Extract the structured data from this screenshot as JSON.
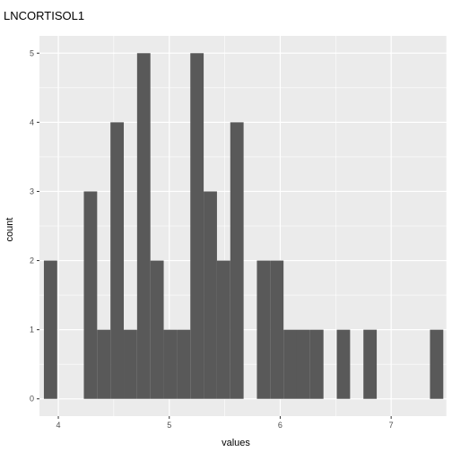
{
  "colors": {
    "panel": "#ebebeb",
    "grid_major": "#ffffff",
    "bar_fill": "#595959",
    "tick": "#333333"
  },
  "chart_data": {
    "type": "bar",
    "title": "LNCORTISOL1",
    "xlabel": "values",
    "ylabel": "count",
    "xlim": [
      3.83,
      7.5
    ],
    "ylim": [
      -0.25,
      5.25
    ],
    "grid": true,
    "xticks": [
      4,
      5,
      6,
      7
    ],
    "yticks": [
      0,
      1,
      2,
      3,
      4,
      5
    ],
    "bins": [
      {
        "x0": 3.87,
        "x1": 3.99,
        "count": 2
      },
      {
        "x0": 3.99,
        "x1": 4.11,
        "count": 0
      },
      {
        "x0": 4.11,
        "x1": 4.23,
        "count": 0
      },
      {
        "x0": 4.23,
        "x1": 4.35,
        "count": 3
      },
      {
        "x0": 4.35,
        "x1": 4.47,
        "count": 1
      },
      {
        "x0": 4.47,
        "x1": 4.59,
        "count": 4
      },
      {
        "x0": 4.59,
        "x1": 4.71,
        "count": 1
      },
      {
        "x0": 4.71,
        "x1": 4.83,
        "count": 5
      },
      {
        "x0": 4.83,
        "x1": 4.95,
        "count": 2
      },
      {
        "x0": 4.95,
        "x1": 5.07,
        "count": 1
      },
      {
        "x0": 5.07,
        "x1": 5.19,
        "count": 1
      },
      {
        "x0": 5.19,
        "x1": 5.31,
        "count": 5
      },
      {
        "x0": 5.31,
        "x1": 5.43,
        "count": 3
      },
      {
        "x0": 5.43,
        "x1": 5.55,
        "count": 2
      },
      {
        "x0": 5.55,
        "x1": 5.67,
        "count": 4
      },
      {
        "x0": 5.67,
        "x1": 5.79,
        "count": 0
      },
      {
        "x0": 5.79,
        "x1": 5.91,
        "count": 2
      },
      {
        "x0": 5.91,
        "x1": 6.03,
        "count": 2
      },
      {
        "x0": 6.03,
        "x1": 6.15,
        "count": 1
      },
      {
        "x0": 6.15,
        "x1": 6.27,
        "count": 1
      },
      {
        "x0": 6.27,
        "x1": 6.39,
        "count": 1
      },
      {
        "x0": 6.39,
        "x1": 6.51,
        "count": 0
      },
      {
        "x0": 6.51,
        "x1": 6.63,
        "count": 1
      },
      {
        "x0": 6.63,
        "x1": 6.75,
        "count": 0
      },
      {
        "x0": 6.75,
        "x1": 6.87,
        "count": 1
      },
      {
        "x0": 6.87,
        "x1": 6.99,
        "count": 0
      },
      {
        "x0": 6.99,
        "x1": 7.11,
        "count": 0
      },
      {
        "x0": 7.11,
        "x1": 7.23,
        "count": 0
      },
      {
        "x0": 7.23,
        "x1": 7.35,
        "count": 0
      },
      {
        "x0": 7.35,
        "x1": 7.47,
        "count": 1
      }
    ]
  }
}
